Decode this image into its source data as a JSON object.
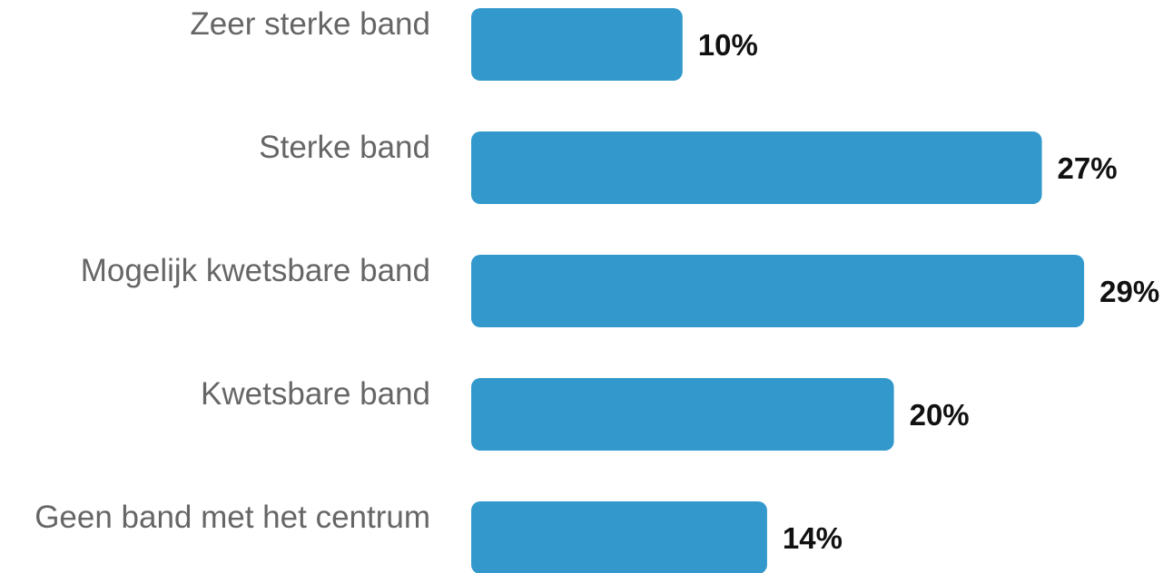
{
  "chart_data": {
    "type": "bar",
    "orientation": "horizontal",
    "title": "",
    "xlabel": "",
    "ylabel": "",
    "categories": [
      "Zeer sterke band",
      "Sterke band",
      "Mogelijk kwetsbare band",
      "Kwetsbare band",
      "Geen band met het centrum"
    ],
    "values": [
      10,
      27,
      29,
      20,
      14
    ],
    "value_labels": [
      "10%",
      "27%",
      "29%",
      "20%",
      "14%"
    ],
    "unit": "%",
    "grid": false,
    "legend": "none"
  },
  "colors": {
    "bar": "#3399cc",
    "category_text": "#666666",
    "value_text": "#111111",
    "background": "#ffffff"
  }
}
